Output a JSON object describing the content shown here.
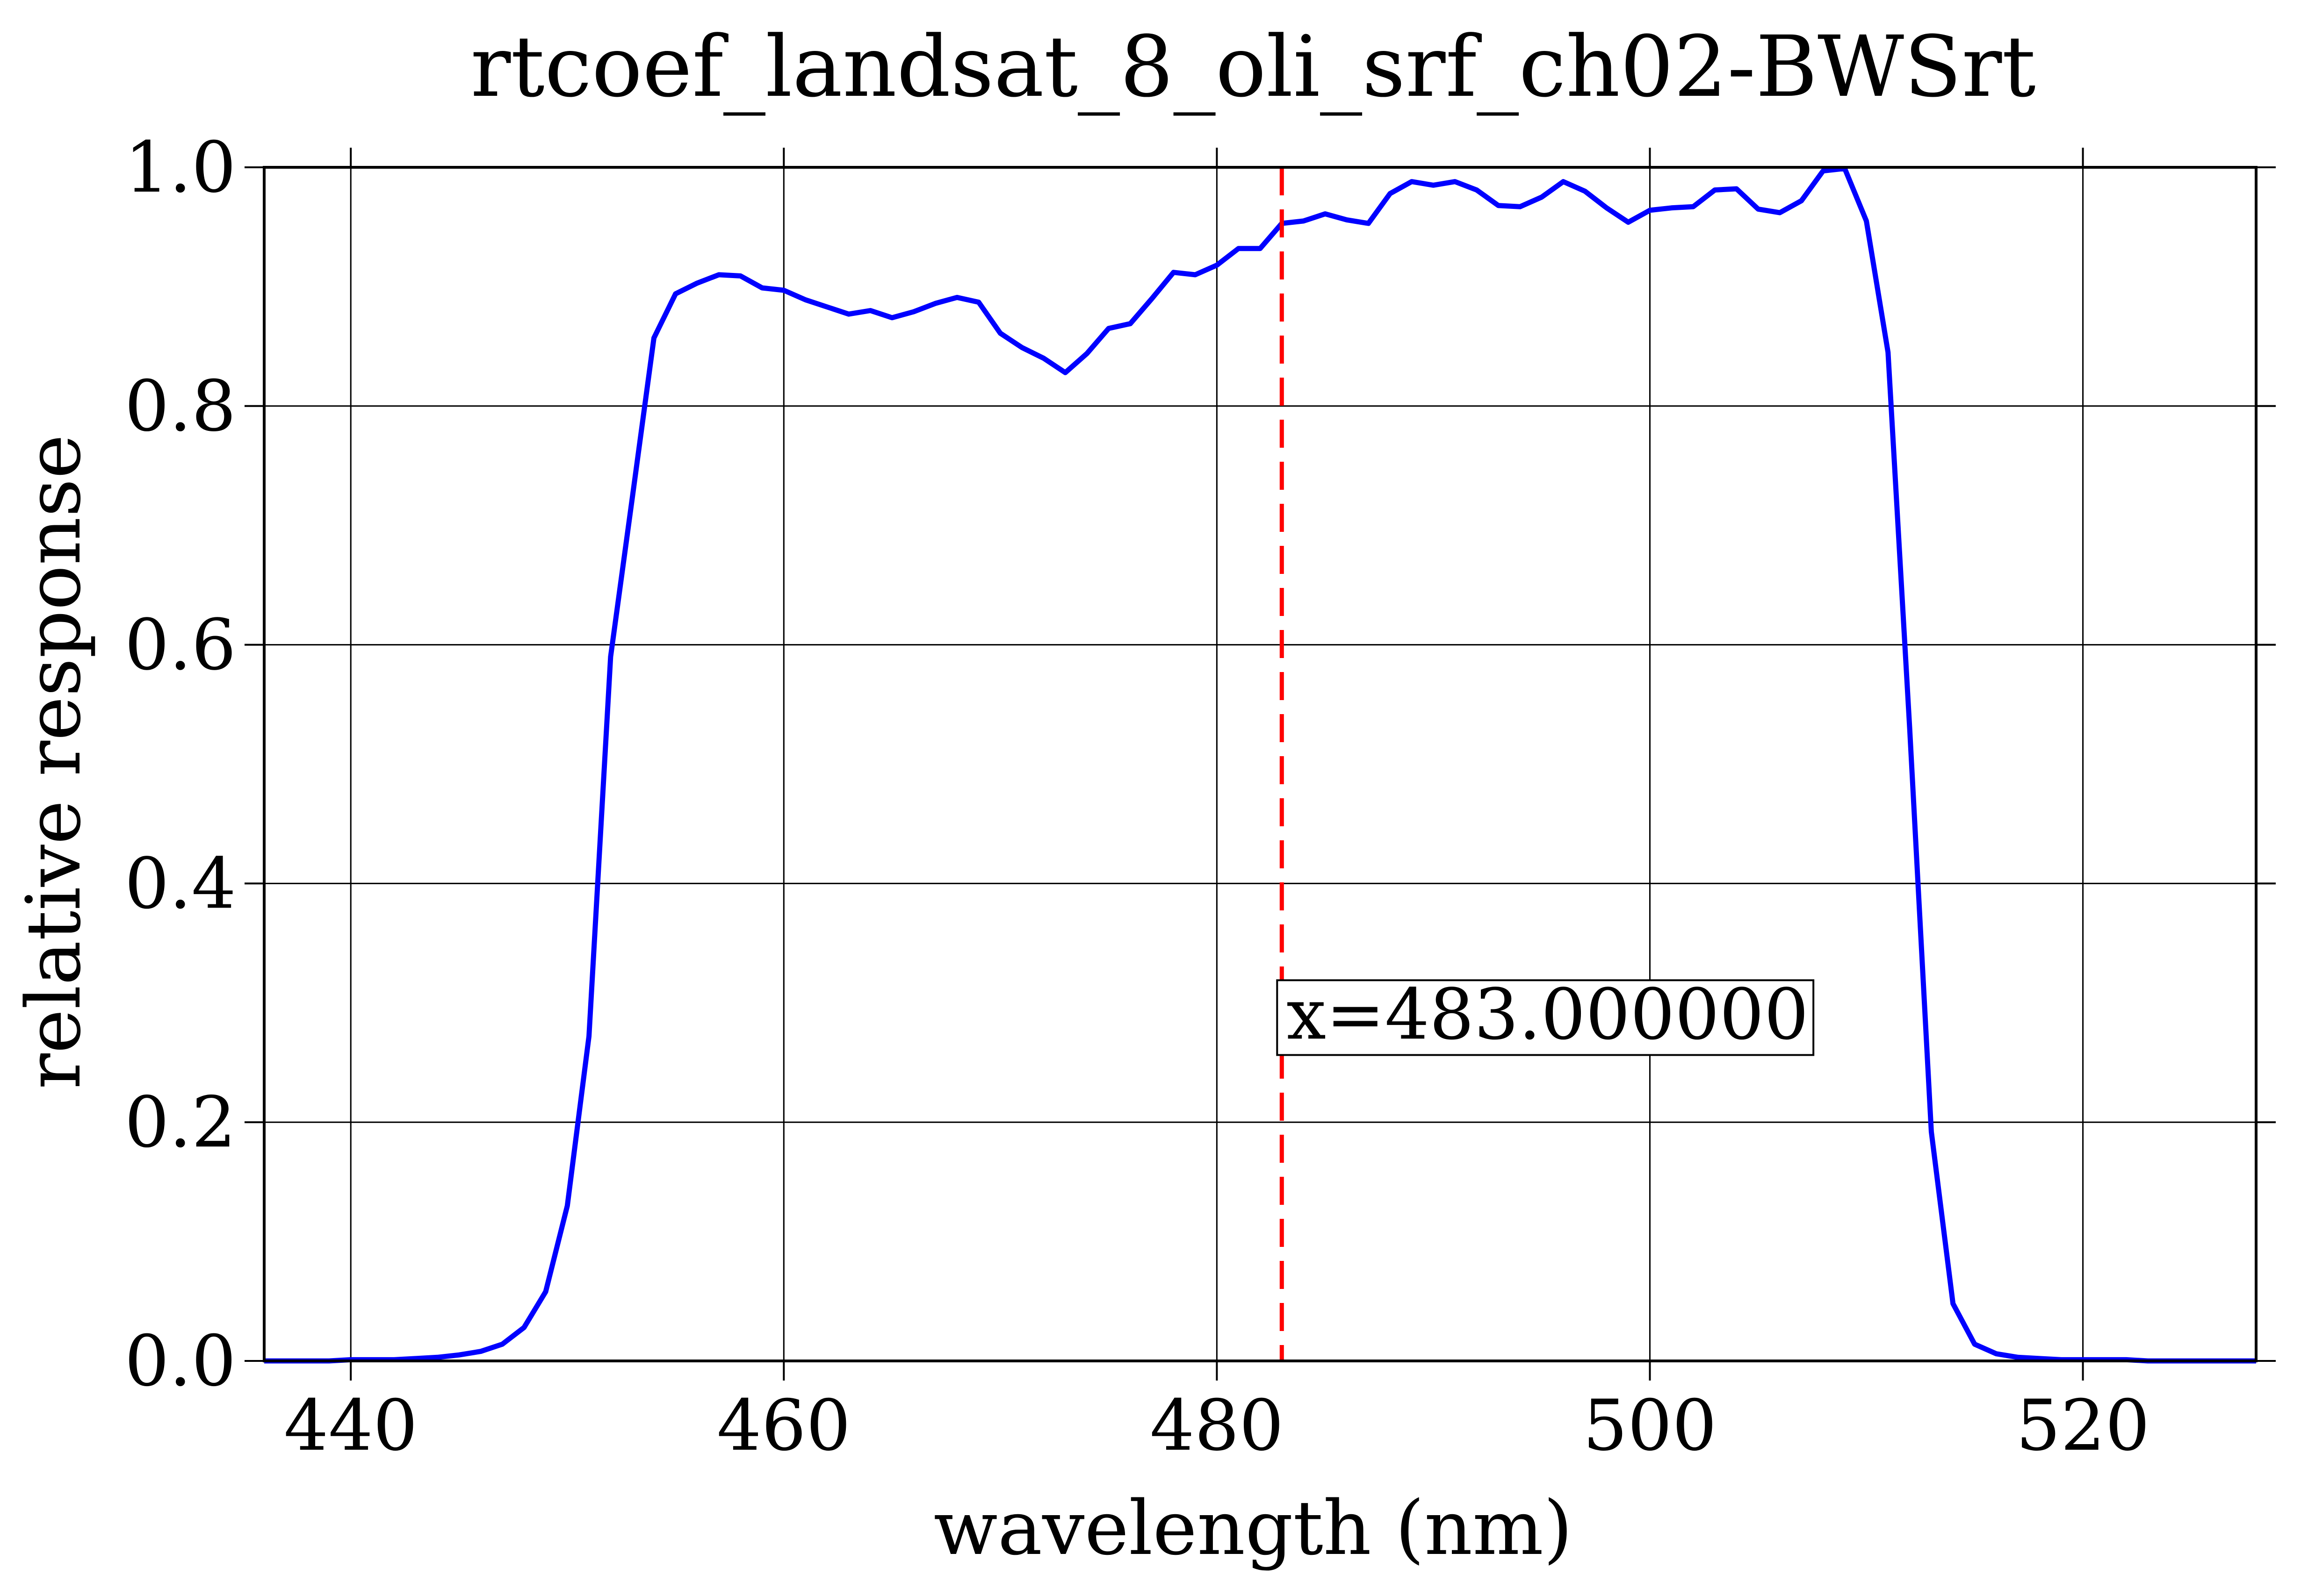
{
  "chart_data": {
    "type": "line",
    "title": "rtcoef_landsat_8_oli_srf_ch02-BWSrt",
    "xlabel": "wavelength (nm)",
    "ylabel": "relative response",
    "xlim": [
      436,
      528
    ],
    "ylim": [
      0.0,
      1.0
    ],
    "xticks": [
      440,
      460,
      480,
      500,
      520
    ],
    "yticks": [
      0.0,
      0.2,
      0.4,
      0.6,
      0.8,
      1.0
    ],
    "xtick_labels": [
      "440",
      "460",
      "480",
      "500",
      "520"
    ],
    "ytick_labels": [
      "0.0",
      "0.2",
      "0.4",
      "0.6",
      "0.8",
      "1.0"
    ],
    "grid": true,
    "series": [
      {
        "color": "#0000ff",
        "x": [
          436,
          437,
          438,
          439,
          440,
          441,
          442,
          443,
          444,
          445,
          446,
          447,
          448,
          449,
          450,
          451,
          452,
          453,
          454,
          455,
          456,
          457,
          458,
          459,
          460,
          461,
          462,
          463,
          464,
          465,
          466,
          467,
          468,
          469,
          470,
          471,
          472,
          473,
          474,
          475,
          476,
          477,
          478,
          479,
          480,
          481,
          482,
          483,
          484,
          485,
          486,
          487,
          488,
          489,
          490,
          491,
          492,
          493,
          494,
          495,
          496,
          497,
          498,
          499,
          500,
          501,
          502,
          503,
          504,
          505,
          506,
          507,
          508,
          509,
          510,
          511,
          512,
          513,
          514,
          515,
          516,
          517,
          518,
          519,
          520,
          521,
          522,
          523,
          524,
          525,
          526,
          527,
          528
        ],
        "y": [
          0.0,
          0.0,
          0.0,
          0.0,
          0.001,
          0.001,
          0.001,
          0.002,
          0.003,
          0.005,
          0.008,
          0.014,
          0.028,
          0.058,
          0.13,
          0.272,
          0.59,
          0.723,
          0.857,
          0.894,
          0.903,
          0.91,
          0.909,
          0.899,
          0.897,
          0.889,
          0.883,
          0.877,
          0.88,
          0.874,
          0.879,
          0.886,
          0.891,
          0.887,
          0.861,
          0.849,
          0.84,
          0.828,
          0.844,
          0.865,
          0.869,
          0.89,
          0.912,
          0.91,
          0.918,
          0.932,
          0.932,
          0.953,
          0.955,
          0.961,
          0.956,
          0.953,
          0.978,
          0.988,
          0.985,
          0.988,
          0.981,
          0.968,
          0.967,
          0.975,
          0.988,
          0.98,
          0.966,
          0.954,
          0.964,
          0.966,
          0.967,
          0.981,
          0.982,
          0.965,
          0.962,
          0.972,
          0.997,
          0.999,
          0.955,
          0.845,
          0.53,
          0.192,
          0.048,
          0.014,
          0.006,
          0.003,
          0.002,
          0.001,
          0.001,
          0.001,
          0.001,
          0.0,
          0.0,
          0.0,
          0.0,
          0.0,
          0.0
        ]
      }
    ],
    "vline": {
      "x": 483,
      "color": "#ff0000",
      "style": "dashed"
    },
    "annotation": {
      "text": "x=483.000000",
      "x": 483,
      "y": 0.27
    }
  }
}
